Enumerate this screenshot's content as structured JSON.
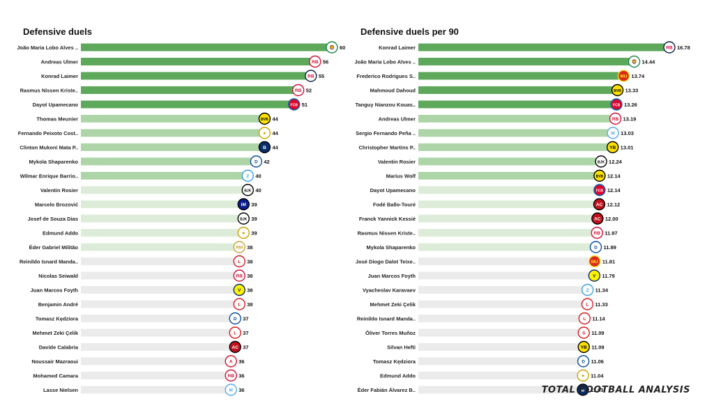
{
  "watermark": "TOTAL FOOTBALL ANALYSIS",
  "colors": {
    "top5": "#5ea85b",
    "mid": "#add5a8",
    "light": "#dcecd8",
    "rest": "#ebebeb"
  },
  "chart_data": [
    {
      "type": "bar",
      "orientation": "horizontal",
      "title": "Defensive duels",
      "xlim": [
        0,
        60
      ],
      "decimals": 0,
      "categories": [
        "João Maria Lobo Alves ..",
        "Andreas Ulmer",
        "Konrad Laimer",
        "Rasmus Nissen Kriste..",
        "Dayot Upamecano",
        "Thomas Meunier",
        "Fernando Peixoto Cost..",
        "Clinton Mukoni Mata P..",
        "Mykola Shaparenko",
        "Wilmar Enrique Barrio..",
        "Valentin Rosier",
        "Marcelo Brozović",
        "Josef de Souza Dias",
        "Edmund Addo",
        "Éder Gabriel Militão",
        "Reinildo Isnard Manda..",
        "Nicolas Seiwald",
        "Juan Marcos Foyth",
        "Benjamin André",
        "Tomasz Kędziora",
        "Mehmet Zeki Çelik",
        "Davide Calabria",
        "Noussair Mazraoui",
        "Mohamed Camara",
        "Lasse Nielsen"
      ],
      "values": [
        60,
        56,
        55,
        52,
        51,
        44,
        44,
        44,
        42,
        40,
        40,
        39,
        39,
        39,
        38,
        38,
        38,
        38,
        38,
        37,
        37,
        37,
        36,
        36,
        36
      ],
      "badges": [
        "sporting",
        "salzburg",
        "leipzig",
        "salzburg",
        "bayern",
        "dortmund",
        "sheriff",
        "brugge",
        "dynamo-kyiv",
        "zenit",
        "besiktas",
        "inter",
        "besiktas",
        "sheriff",
        "real-madrid",
        "lille",
        "salzburg",
        "villarreal",
        "lille",
        "dynamo-kyiv",
        "lille",
        "milan",
        "ajax",
        "salzburg",
        "malmo"
      ]
    },
    {
      "type": "bar",
      "orientation": "horizontal",
      "title": "Defensive duels per 90",
      "xlim": [
        0,
        16.78
      ],
      "decimals": 2,
      "categories": [
        "Konrad Laimer",
        "João Maria Lobo Alves ..",
        "Frederico Rodrigues S..",
        "Mahmoud Dahoud",
        "Tanguy Nianzou Kouas..",
        "Andreas Ulmer",
        "Sergio Fernando Peña ..",
        "Christopher Martins P..",
        "Valentin Rosier",
        "Marius Wolf",
        "Dayot Upamecano",
        "Fodé  Ballo-Touré",
        "Franck Yannick Kessié",
        "Rasmus Nissen Kriste..",
        "Mykola Shaparenko",
        "José Diogo Dalot Teixe..",
        "Juan Marcos Foyth",
        "Vyacheslav Karavaev",
        "Mehmet Zeki Çelik",
        "Reinildo Isnard Manda..",
        "Óliver Torres Muñoz",
        "Silvan Hefti",
        "Tomasz Kędziora",
        "Edmund Addo",
        "Éder Fabián Álvarez B.."
      ],
      "values": [
        16.78,
        14.44,
        13.74,
        13.33,
        13.26,
        13.19,
        13.03,
        13.01,
        12.24,
        12.14,
        12.14,
        12.12,
        12.0,
        11.97,
        11.89,
        11.81,
        11.79,
        11.34,
        11.33,
        11.14,
        11.09,
        11.09,
        11.06,
        11.04,
        11.03
      ],
      "badges": [
        "leipzig",
        "sporting",
        "man-utd",
        "dortmund",
        "bayern",
        "salzburg",
        "malmo",
        "young-boys",
        "besiktas",
        "dortmund",
        "bayern",
        "milan",
        "milan",
        "salzburg",
        "dynamo-kyiv",
        "man-utd",
        "villarreal",
        "zenit",
        "lille",
        "lille",
        "sevilla",
        "young-boys",
        "dynamo-kyiv",
        "sheriff",
        "brugge"
      ]
    }
  ]
}
